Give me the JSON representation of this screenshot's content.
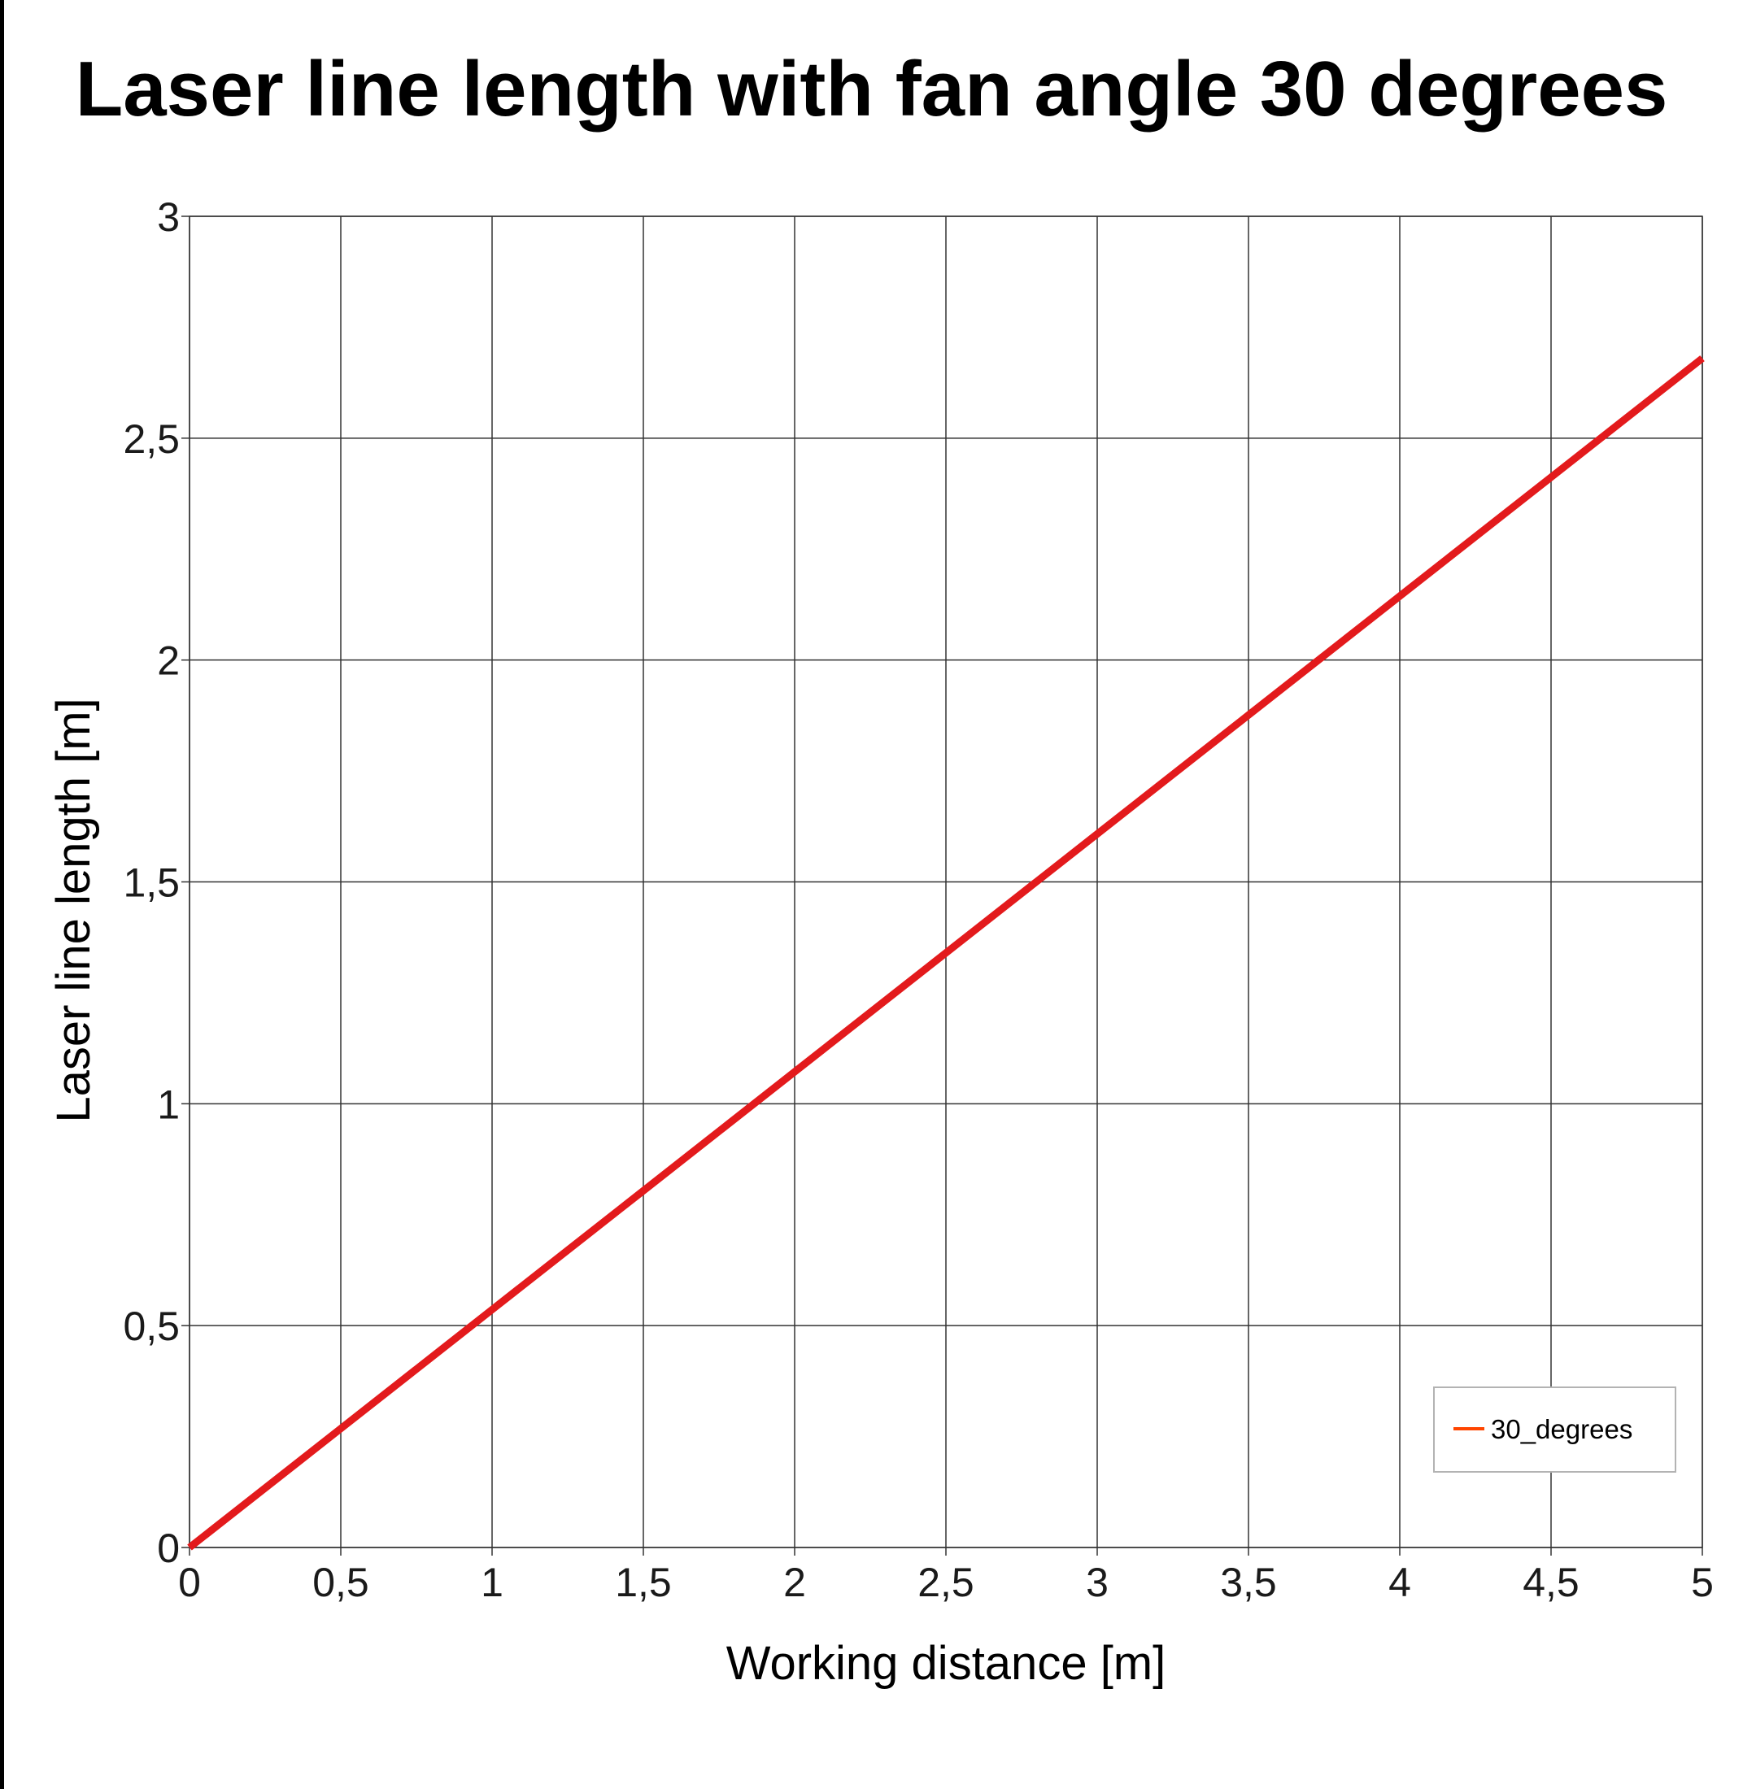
{
  "chart_data": {
    "type": "line",
    "title": "Laser line length with fan angle 30 degrees",
    "xlabel": "Working distance [m]",
    "ylabel": "Laser line length [m]",
    "xlim": [
      0,
      5
    ],
    "ylim": [
      0,
      3
    ],
    "x_ticks": [
      0,
      0.5,
      1,
      1.5,
      2,
      2.5,
      3,
      3.5,
      4,
      4.5,
      5
    ],
    "y_ticks": [
      0,
      0.5,
      1,
      1.5,
      2,
      2.5,
      3
    ],
    "x_tick_labels": [
      "0",
      "0,5",
      "1",
      "1,5",
      "2",
      "2,5",
      "3",
      "3,5",
      "4",
      "4,5",
      "5"
    ],
    "y_tick_labels": [
      "0",
      "0,5",
      "1",
      "1,5",
      "2",
      "2,5",
      "3"
    ],
    "grid": true,
    "legend_position": "bottom-right",
    "series": [
      {
        "name": "30_degrees",
        "color": "#e31a1c",
        "x": [
          0,
          0.5,
          1,
          1.5,
          2,
          2.5,
          3,
          3.5,
          4,
          4.5,
          5
        ],
        "y": [
          0,
          0.268,
          0.536,
          0.804,
          1.072,
          1.34,
          1.608,
          1.876,
          2.144,
          2.412,
          2.68
        ]
      }
    ]
  }
}
